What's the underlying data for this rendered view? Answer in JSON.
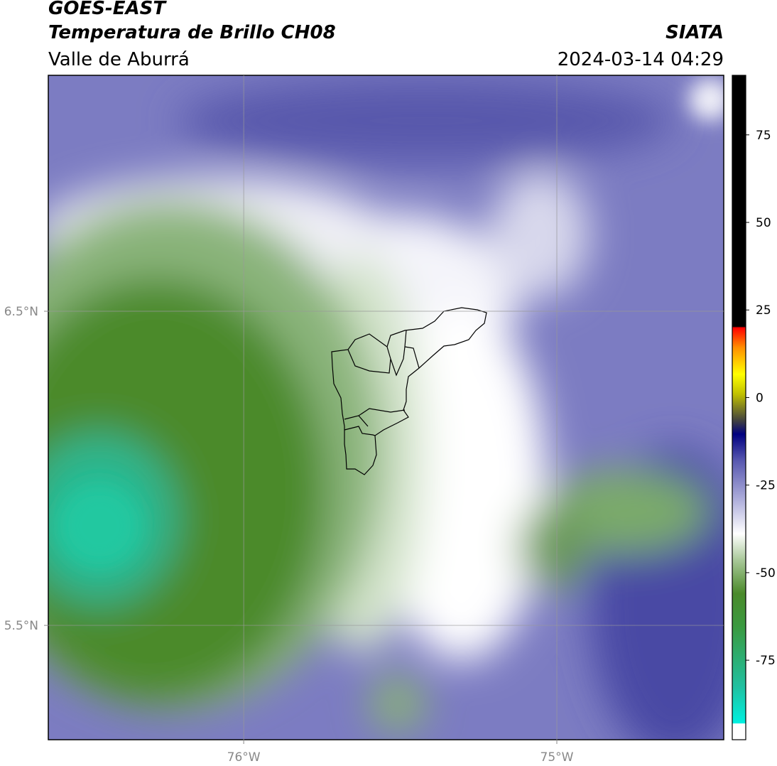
{
  "header": {
    "title": "GOES-EAST",
    "subtitle": "Temperatura de Brillo CH08",
    "region": "Valle de Aburrá",
    "source": "SIATA",
    "timestamp": "2024-03-14 04:29"
  },
  "map": {
    "xlim": [
      -76.624,
      -74.467
    ],
    "ylim": [
      5.136,
      7.251
    ],
    "xticks": [
      {
        "value": -76,
        "label": "76°W"
      },
      {
        "value": -75,
        "label": "75°W"
      }
    ],
    "yticks": [
      {
        "value": 6.5,
        "label": "6.5°N"
      },
      {
        "value": 5.5,
        "label": "5.5°N"
      }
    ],
    "grid": true
  },
  "colorbar": {
    "lim": [
      -97.7,
      92
    ],
    "ticks": [
      75,
      50,
      25,
      0,
      -25,
      -50,
      -75
    ]
  }
}
